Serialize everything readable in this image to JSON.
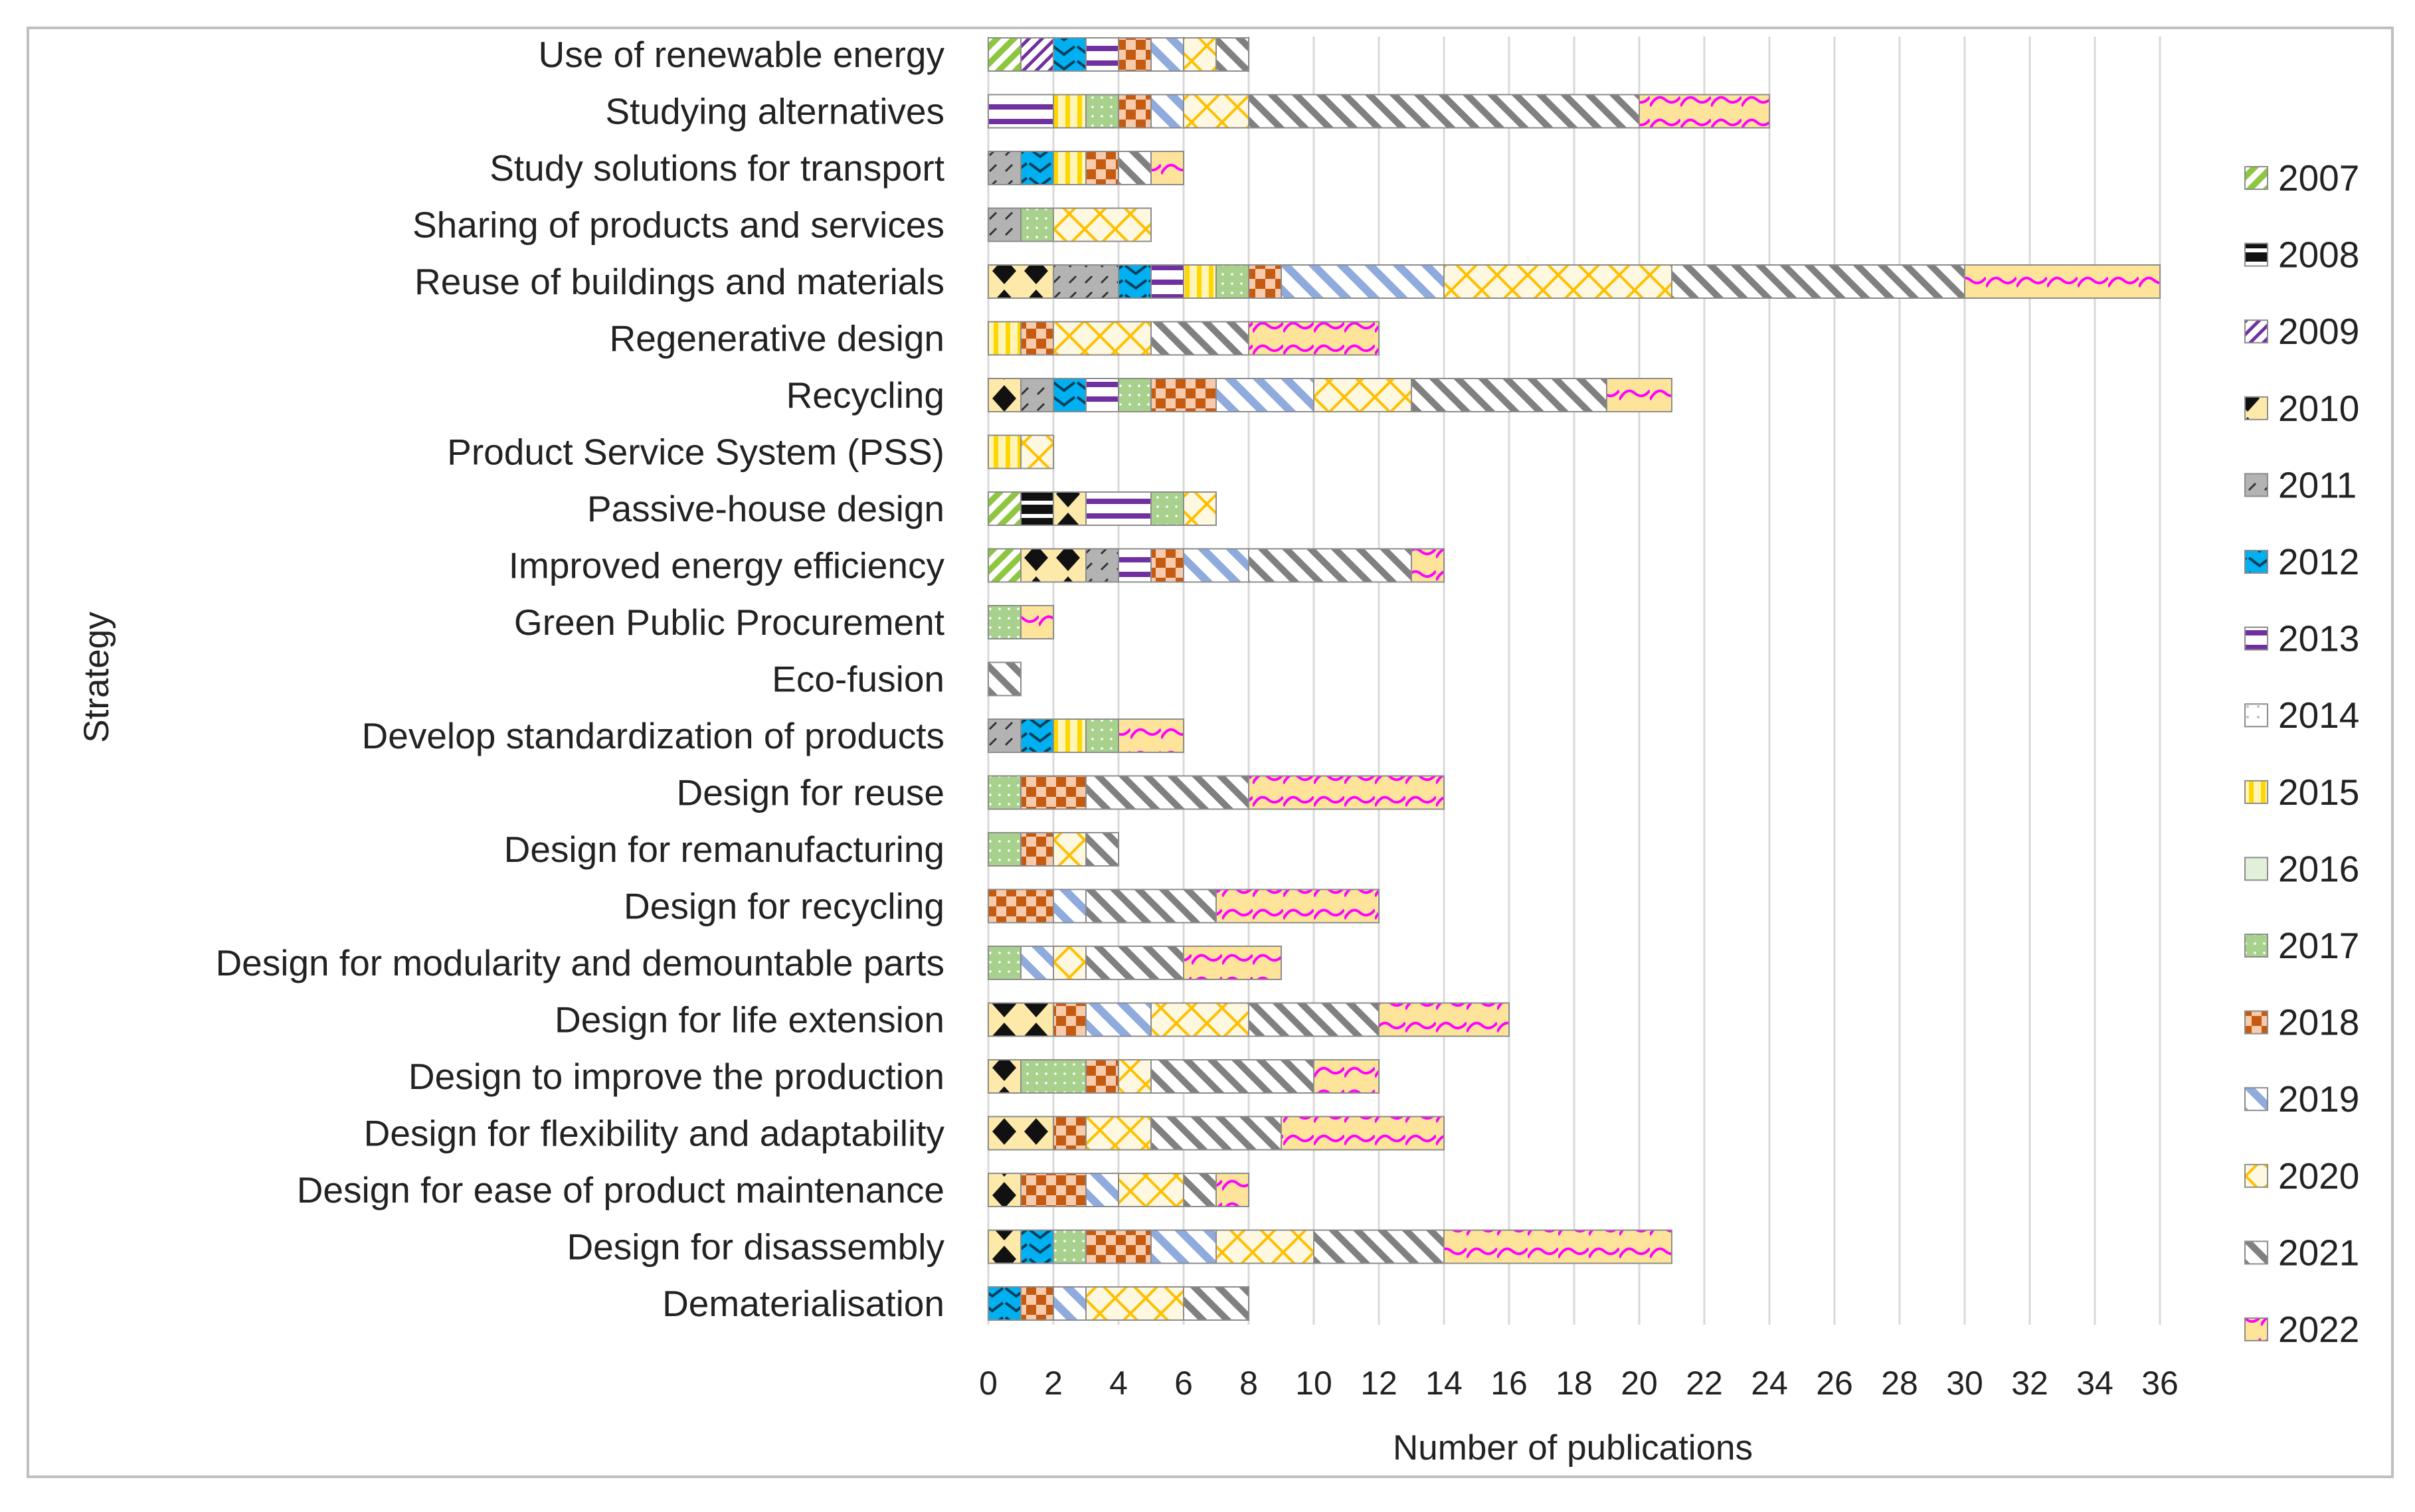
{
  "chart_data": {
    "type": "bar",
    "orientation": "horizontal",
    "stacked": true,
    "xlabel": "Number of publications",
    "ylabel": "Strategy",
    "xlim": [
      0,
      36
    ],
    "xticks": [
      0,
      2,
      4,
      6,
      8,
      10,
      12,
      14,
      16,
      18,
      20,
      22,
      24,
      26,
      28,
      30,
      32,
      34,
      36
    ],
    "grid": "vertical",
    "legend_position": "right",
    "categories": [
      "Use of renewable energy",
      "Studying alternatives",
      "Study solutions for transport",
      "Sharing of products and services",
      "Reuse of buildings and materials",
      "Regenerative design",
      "Recycling",
      "Product Service System (PSS)",
      "Passive-house design",
      "Improved energy efficiency",
      "Green Public Procurement",
      "Eco-fusion",
      "Develop standardization of products",
      "Design for reuse",
      "Design for remanufacturing",
      "Design for recycling",
      "Design for modularity and demountable parts",
      "Design for life extension",
      "Design to improve the production",
      "Design for flexibility and adaptability",
      "Design for ease of product maintenance",
      "Design for disassembly",
      "Dematerialisation"
    ],
    "series": [
      {
        "name": "2007",
        "color": "#8dc63f",
        "pattern": "diag-green",
        "values": [
          1,
          0,
          0,
          0,
          0,
          0,
          0,
          0,
          1,
          1,
          0,
          0,
          0,
          0,
          0,
          0,
          0,
          0,
          0,
          0,
          0,
          0,
          0
        ]
      },
      {
        "name": "2008",
        "color": "#111111",
        "pattern": "solid-black",
        "values": [
          0,
          0,
          0,
          0,
          0,
          0,
          0,
          0,
          1,
          0,
          0,
          0,
          0,
          0,
          0,
          0,
          0,
          0,
          0,
          0,
          0,
          0,
          0
        ]
      },
      {
        "name": "2009",
        "color": "#7030a0",
        "pattern": "diag-purple",
        "values": [
          1,
          0,
          0,
          0,
          0,
          0,
          0,
          0,
          0,
          0,
          0,
          0,
          0,
          0,
          0,
          0,
          0,
          0,
          0,
          0,
          0,
          0,
          0
        ]
      },
      {
        "name": "2010",
        "color": "#111111",
        "pattern": "diamond-black",
        "values": [
          0,
          0,
          0,
          0,
          2,
          0,
          1,
          0,
          1,
          2,
          0,
          0,
          0,
          0,
          0,
          0,
          0,
          2,
          1,
          2,
          1,
          1,
          0
        ]
      },
      {
        "name": "2011",
        "color": "#a6a6a6",
        "pattern": "grey-dash",
        "values": [
          0,
          0,
          1,
          1,
          2,
          0,
          1,
          0,
          0,
          1,
          0,
          0,
          1,
          0,
          0,
          0,
          0,
          0,
          0,
          0,
          0,
          0,
          0
        ]
      },
      {
        "name": "2012",
        "color": "#00b0f0",
        "pattern": "chevron-blue",
        "values": [
          1,
          0,
          1,
          0,
          1,
          0,
          1,
          0,
          0,
          0,
          0,
          0,
          1,
          0,
          0,
          0,
          0,
          0,
          0,
          0,
          0,
          1,
          1
        ]
      },
      {
        "name": "2013",
        "color": "#7030a0",
        "pattern": "hstripe-purple",
        "values": [
          1,
          2,
          0,
          0,
          1,
          0,
          1,
          0,
          2,
          1,
          0,
          0,
          0,
          0,
          0,
          0,
          0,
          0,
          0,
          0,
          0,
          0,
          0
        ]
      },
      {
        "name": "2014",
        "color": "#d9d9d9",
        "pattern": "dots-light",
        "values": [
          0,
          0,
          0,
          0,
          0,
          0,
          0,
          0,
          0,
          0,
          0,
          0,
          0,
          0,
          0,
          0,
          0,
          0,
          0,
          0,
          0,
          0,
          0
        ]
      },
      {
        "name": "2015",
        "color": "#ffd700",
        "pattern": "vstripe-yellow",
        "values": [
          0,
          1,
          1,
          0,
          1,
          1,
          0,
          1,
          0,
          0,
          0,
          0,
          1,
          0,
          0,
          0,
          0,
          0,
          0,
          0,
          0,
          0,
          0
        ]
      },
      {
        "name": "2016",
        "color": "#e2efda",
        "pattern": "light-green",
        "values": [
          0,
          0,
          0,
          0,
          0,
          0,
          0,
          0,
          0,
          0,
          0,
          0,
          0,
          0,
          0,
          0,
          0,
          0,
          0,
          0,
          0,
          0,
          0
        ]
      },
      {
        "name": "2017",
        "color": "#a9d18e",
        "pattern": "dots-green",
        "values": [
          0,
          1,
          0,
          1,
          1,
          0,
          1,
          0,
          1,
          0,
          1,
          0,
          1,
          1,
          1,
          0,
          1,
          0,
          2,
          0,
          0,
          1,
          0
        ]
      },
      {
        "name": "2018",
        "color": "#c55a11",
        "pattern": "check-orange",
        "values": [
          1,
          1,
          1,
          0,
          1,
          1,
          2,
          0,
          0,
          1,
          0,
          0,
          0,
          2,
          1,
          2,
          0,
          1,
          1,
          1,
          2,
          2,
          1
        ]
      },
      {
        "name": "2019",
        "color": "#8faadc",
        "pattern": "diag-blue",
        "values": [
          1,
          1,
          0,
          0,
          5,
          0,
          3,
          0,
          0,
          2,
          0,
          0,
          0,
          0,
          0,
          1,
          1,
          2,
          0,
          0,
          1,
          2,
          1
        ]
      },
      {
        "name": "2020",
        "color": "#ffc000",
        "pattern": "xhatch-yellow",
        "values": [
          1,
          2,
          0,
          3,
          7,
          3,
          3,
          1,
          1,
          0,
          0,
          0,
          0,
          0,
          1,
          0,
          1,
          3,
          1,
          2,
          2,
          3,
          3
        ]
      },
      {
        "name": "2021",
        "color": "#808080",
        "pattern": "diag-grey",
        "values": [
          1,
          12,
          1,
          0,
          9,
          3,
          6,
          0,
          0,
          5,
          0,
          1,
          0,
          5,
          1,
          4,
          3,
          4,
          5,
          4,
          1,
          4,
          2
        ]
      },
      {
        "name": "2022",
        "color": "#ff00ff",
        "pattern": "wave-pink",
        "values": [
          0,
          4,
          1,
          0,
          6,
          4,
          2,
          0,
          0,
          1,
          1,
          0,
          2,
          6,
          0,
          5,
          3,
          4,
          2,
          5,
          1,
          7,
          0
        ]
      }
    ]
  }
}
